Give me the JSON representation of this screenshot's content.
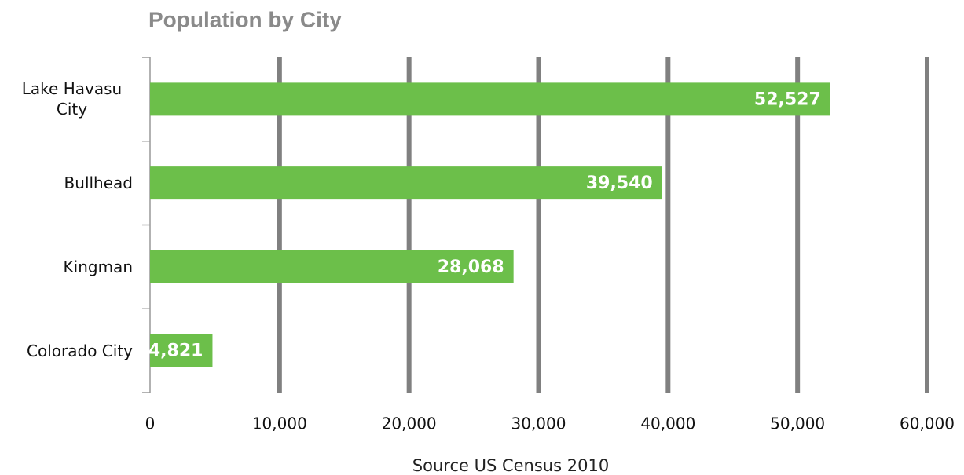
{
  "chart_data": {
    "type": "bar",
    "orientation": "horizontal",
    "title": "Population by City",
    "categories": [
      "Lake Havasu City",
      "Bullhead",
      "Kingman",
      "Colorado City"
    ],
    "values": [
      52527,
      39540,
      28068,
      4821
    ],
    "value_labels": [
      "52,527",
      "39,540",
      "28,068",
      "4,821"
    ],
    "color": "#6cbf4a",
    "xlim": [
      0,
      60000
    ],
    "xticks": [
      0,
      {
        "value": 10000,
        "label": "10,000"
      },
      {
        "value": 20000,
        "label": "20,000"
      },
      {
        "value": 30000,
        "label": "30,000"
      },
      {
        "value": 40000,
        "label": "40,000"
      },
      {
        "value": 50000,
        "label": "50,000"
      },
      {
        "value": 60000,
        "label": "60,000"
      }
    ],
    "x_label": "Source US Census 2010",
    "grid": true
  }
}
